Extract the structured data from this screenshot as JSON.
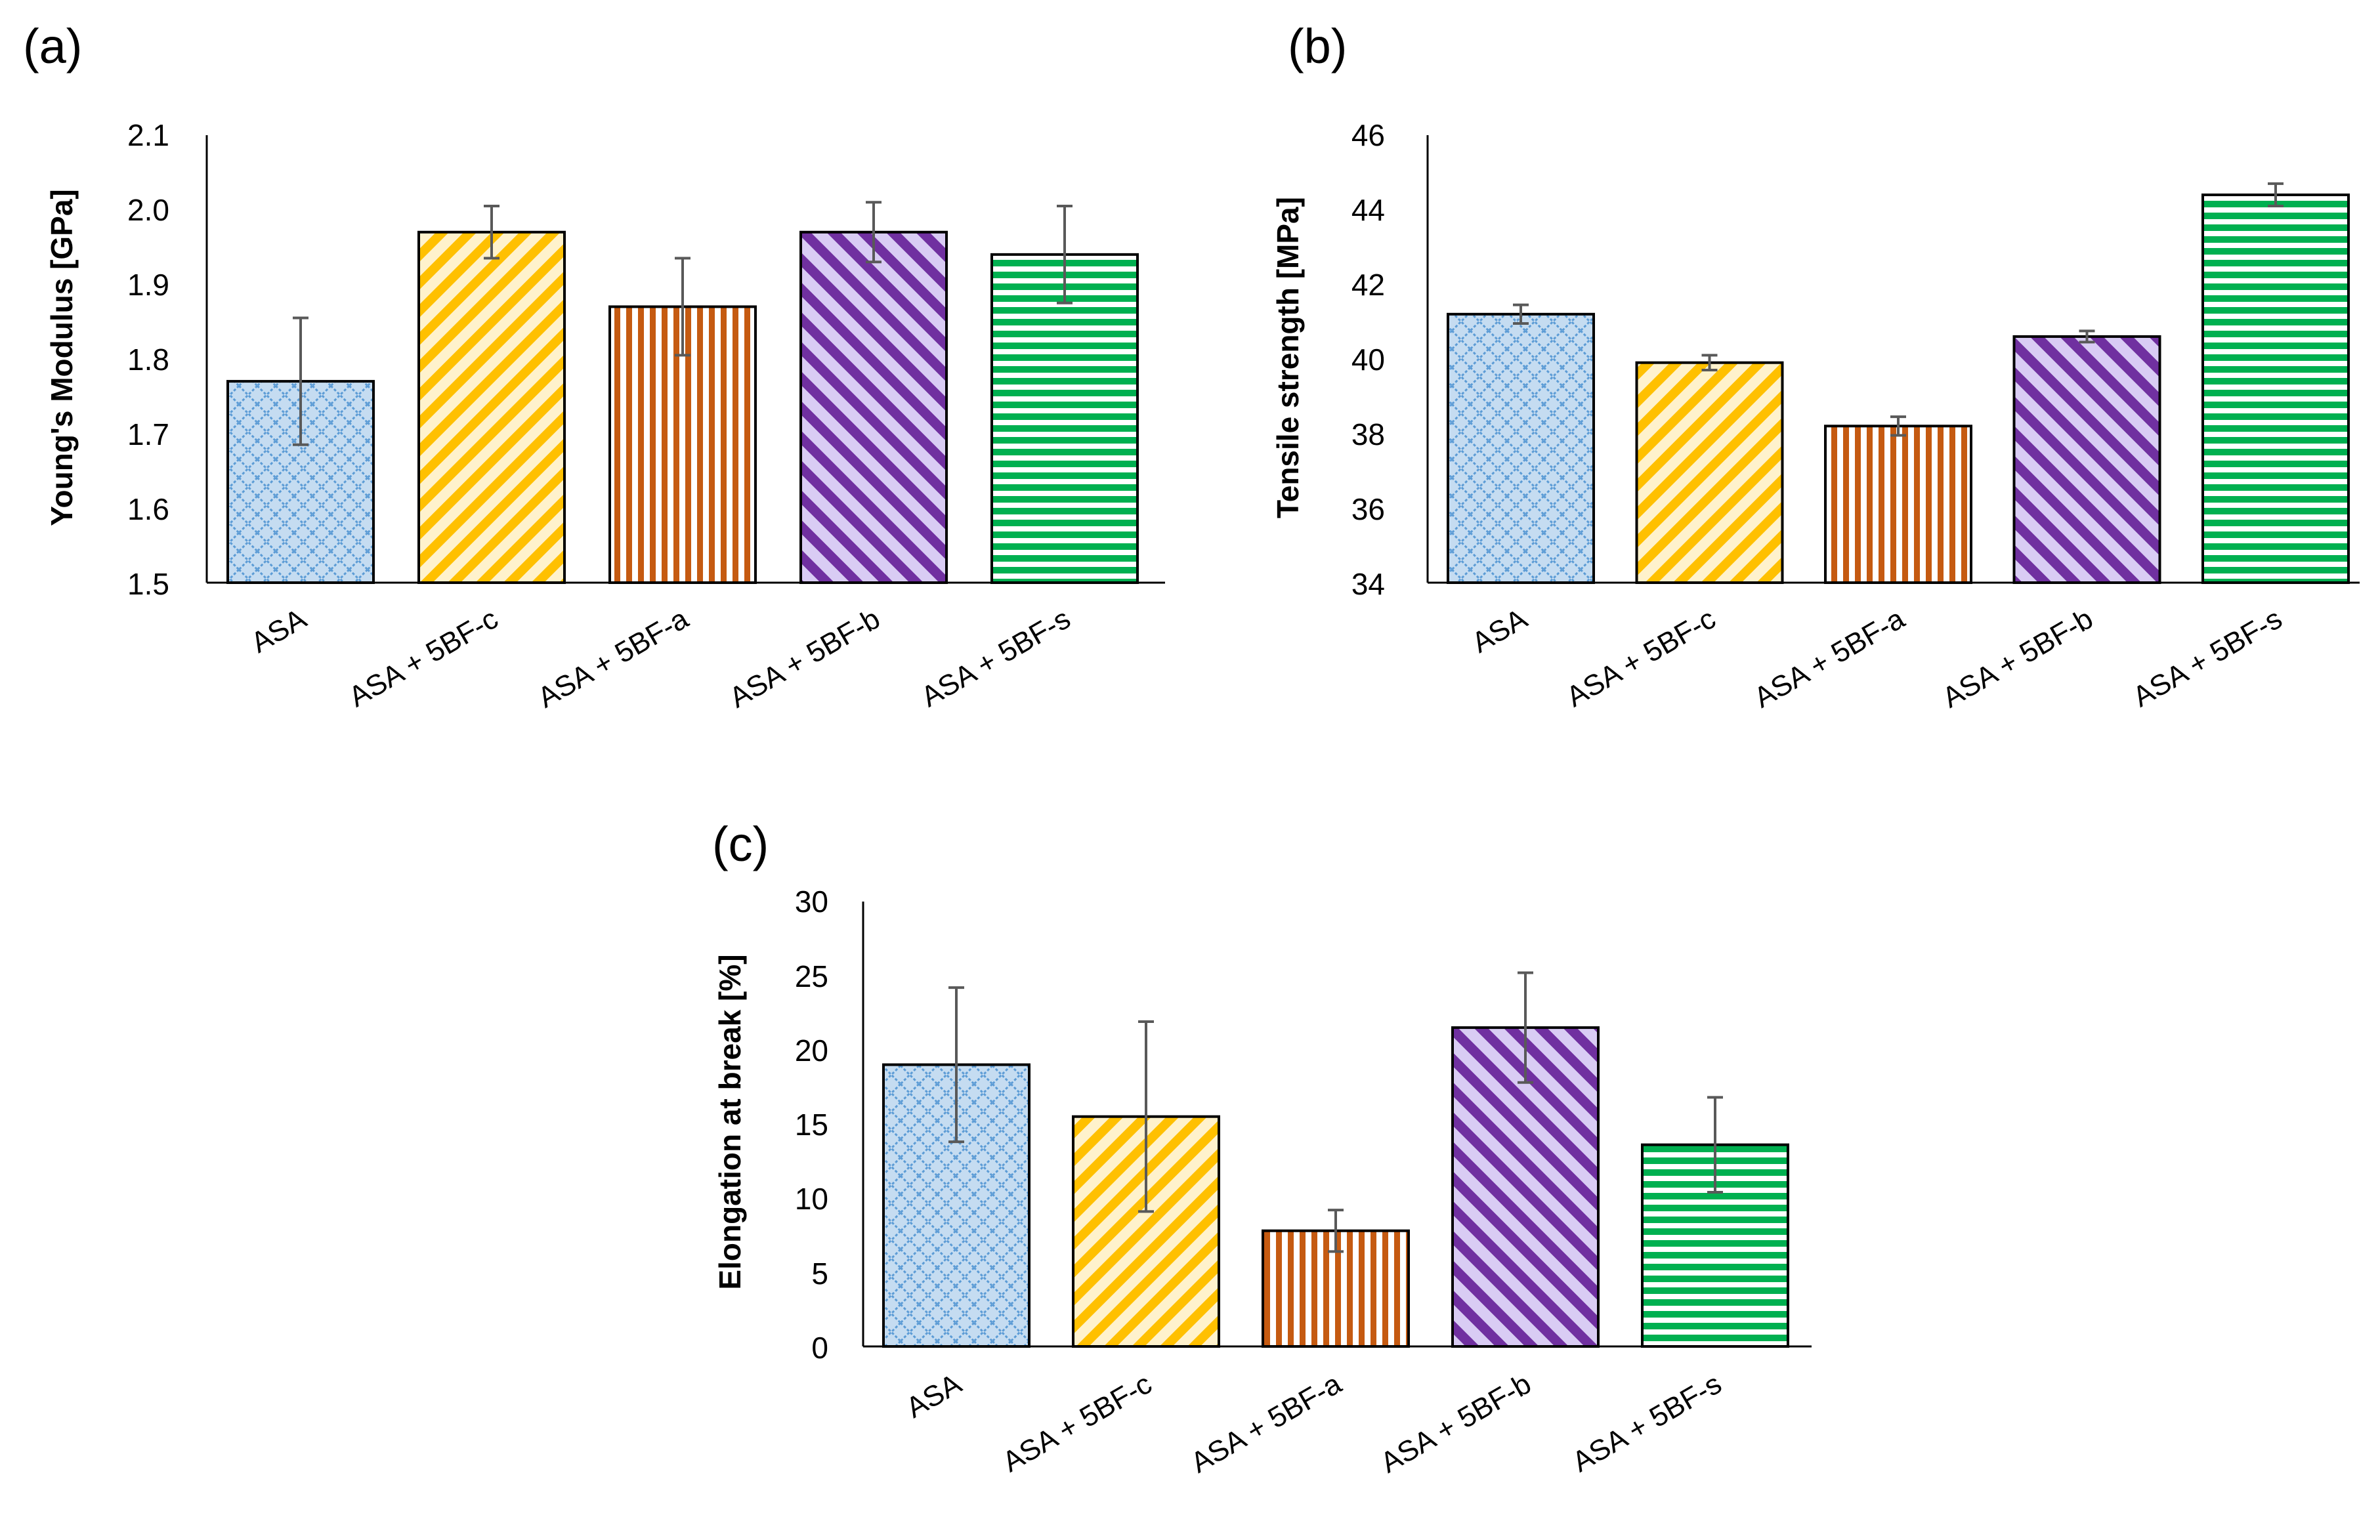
{
  "chart_data": [
    {
      "type": "bar",
      "panel_label": "(a)",
      "ylabel": "Young's Modulus [GPa]",
      "xlabel": "",
      "ylim": [
        1.5,
        2.1
      ],
      "yticks": [
        1.5,
        1.6,
        1.7,
        1.8,
        1.9,
        2.0,
        2.1
      ],
      "ytick_labels": [
        "1.5",
        "1.6",
        "1.7",
        "1.8",
        "1.9",
        "2.0",
        "2.1"
      ],
      "categories": [
        "ASA",
        "ASA + 5BF-c",
        "ASA + 5BF-a",
        "ASA + 5BF-b",
        "ASA + 5BF-s"
      ],
      "values": [
        1.77,
        1.97,
        1.87,
        1.97,
        1.94
      ],
      "errors": [
        0.085,
        0.035,
        0.065,
        0.04,
        0.065
      ],
      "grid": false
    },
    {
      "type": "bar",
      "panel_label": "(b)",
      "ylabel": "Tensile strength [MPa]",
      "xlabel": "",
      "ylim": [
        34,
        46
      ],
      "yticks": [
        34,
        36,
        38,
        40,
        42,
        44,
        46
      ],
      "ytick_labels": [
        "34",
        "36",
        "38",
        "40",
        "42",
        "44",
        "46"
      ],
      "categories": [
        "ASA",
        "ASA + 5BF-c",
        "ASA + 5BF-a",
        "ASA + 5BF-b",
        "ASA + 5BF-s"
      ],
      "values": [
        41.2,
        39.9,
        38.2,
        40.6,
        44.4
      ],
      "errors": [
        0.25,
        0.2,
        0.25,
        0.15,
        0.3
      ],
      "grid": false
    },
    {
      "type": "bar",
      "panel_label": "(c)",
      "ylabel": "Elongation at break [%]",
      "xlabel": "",
      "ylim": [
        0,
        30
      ],
      "yticks": [
        0,
        5,
        10,
        15,
        20,
        25,
        30
      ],
      "ytick_labels": [
        "0",
        "5",
        "10",
        "15",
        "20",
        "25",
        "30"
      ],
      "categories": [
        "ASA",
        "ASA + 5BF-c",
        "ASA + 5BF-a",
        "ASA + 5BF-b",
        "ASA + 5BF-s"
      ],
      "values": [
        19.0,
        15.5,
        7.8,
        21.5,
        13.6
      ],
      "errors": [
        5.2,
        6.4,
        1.4,
        3.7,
        3.2
      ],
      "grid": false
    }
  ],
  "colors": {
    "ASA": "#5B9BD5",
    "ASA_bg": "#C5DCF1",
    "5BF_c": "#FFC000",
    "5BF_c_bg": "#FFF2CC",
    "5BF_a": "#C55A11",
    "5BF_a_bg": "#FFFFFF",
    "5BF_b": "#7030A0",
    "5BF_b_bg": "#D9CCF4",
    "5BF_s": "#00B050",
    "5BF_s_bg": "#FFFFFF",
    "error_bar": "#595959"
  }
}
